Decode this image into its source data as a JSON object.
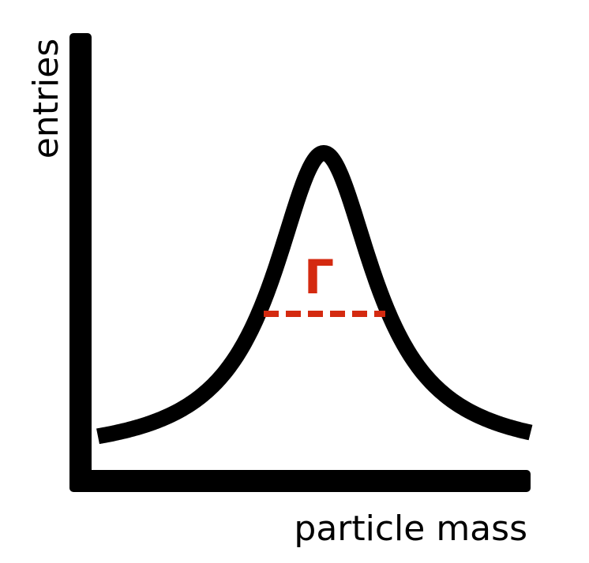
{
  "diagram": {
    "y_axis_label": "entries",
    "x_axis_label": "particle mass",
    "width_symbol": "Γ"
  },
  "style": {
    "curve_color": "#000000",
    "axis_color": "#000000",
    "width_marker_color": "#d42a10"
  }
}
